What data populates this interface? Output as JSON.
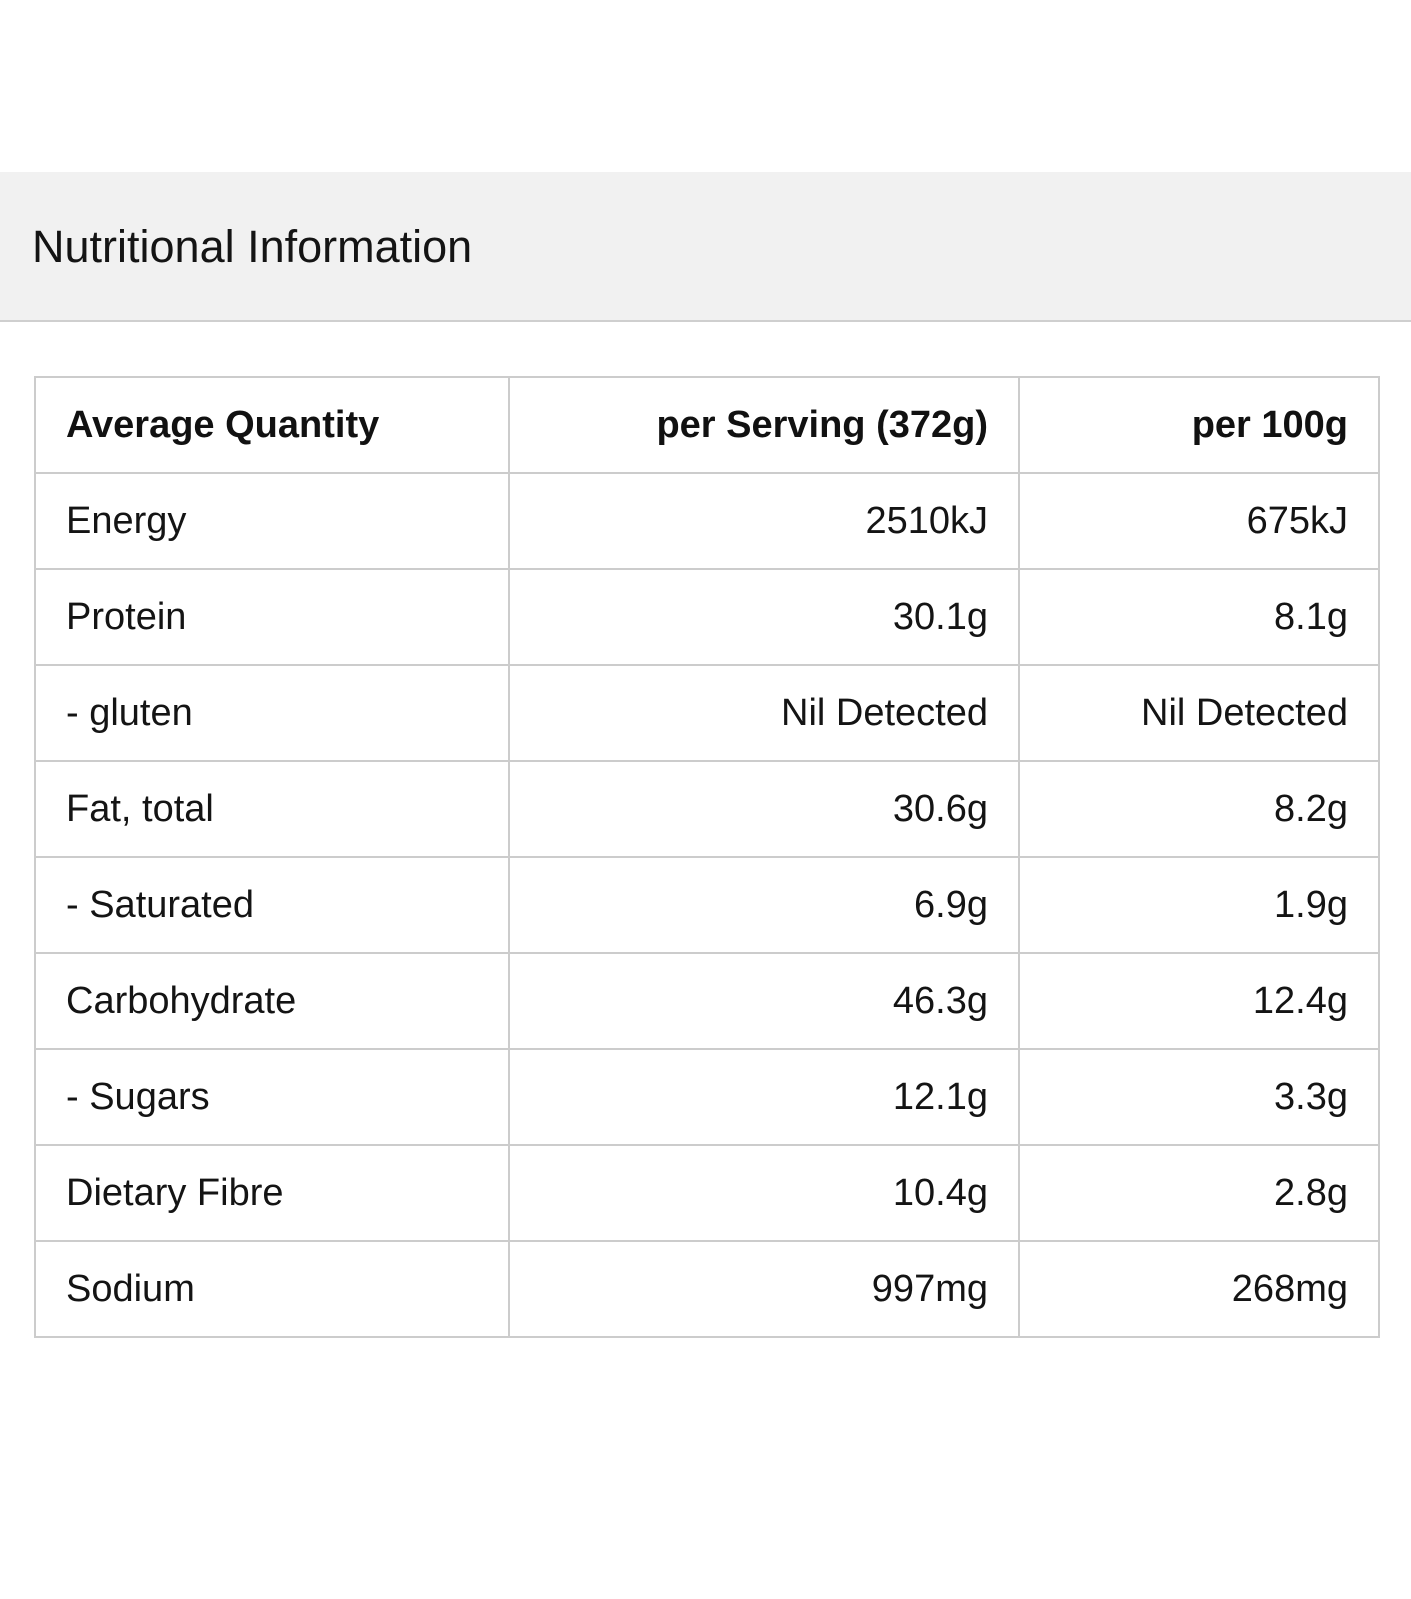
{
  "panel": {
    "title": "Nutritional Information"
  },
  "table": {
    "headers": {
      "name": "Average Quantity",
      "per_serving": "per Serving (372g)",
      "per_100g": "per 100g"
    },
    "rows": [
      {
        "name": "Energy",
        "per_serving": "2510kJ",
        "per_100g": "675kJ"
      },
      {
        "name": "Protein",
        "per_serving": "30.1g",
        "per_100g": "8.1g"
      },
      {
        "name": "- gluten",
        "per_serving": "Nil Detected",
        "per_100g": "Nil Detected"
      },
      {
        "name": "Fat, total",
        "per_serving": "30.6g",
        "per_100g": "8.2g"
      },
      {
        "name": "- Saturated",
        "per_serving": "6.9g",
        "per_100g": "1.9g"
      },
      {
        "name": "Carbohydrate",
        "per_serving": "46.3g",
        "per_100g": "12.4g"
      },
      {
        "name": "- Sugars",
        "per_serving": "12.1g",
        "per_100g": "3.3g"
      },
      {
        "name": "Dietary Fibre",
        "per_serving": "10.4g",
        "per_100g": "2.8g"
      },
      {
        "name": "Sodium",
        "per_serving": "997mg",
        "per_100g": "268mg"
      }
    ]
  }
}
